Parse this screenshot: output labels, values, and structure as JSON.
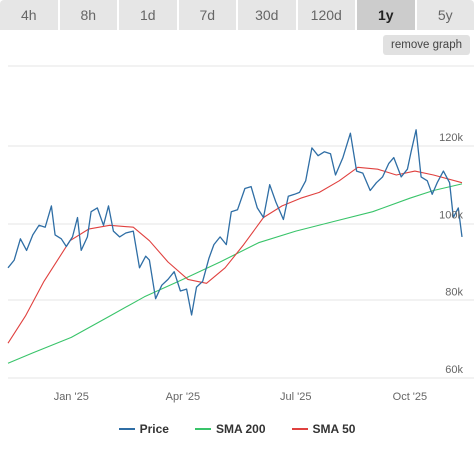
{
  "tabs": [
    {
      "label": "4h",
      "active": false
    },
    {
      "label": "8h",
      "active": false
    },
    {
      "label": "1d",
      "active": false
    },
    {
      "label": "7d",
      "active": false
    },
    {
      "label": "30d",
      "active": false
    },
    {
      "label": "120d",
      "active": false
    },
    {
      "label": "1y",
      "active": true
    },
    {
      "label": "5y",
      "active": false
    }
  ],
  "remove_graph_label": "remove graph",
  "colors": {
    "price": "#2f6ea5",
    "sma200": "#39c46a",
    "sma50": "#e0413f",
    "grid": "#e6e6e6"
  },
  "chart_data": {
    "type": "line",
    "x_ticks": [
      "Jan '25",
      "Apr '25",
      "Jul '25",
      "Oct '25"
    ],
    "y_ticks": [
      "60k",
      "80k",
      "100k",
      "120k"
    ],
    "ylim": [
      60000,
      120000
    ],
    "xlim": [
      "2024-11-11",
      "2025-11-12"
    ],
    "grid": true,
    "legend_position": "bottom",
    "series": [
      {
        "name": "Price",
        "points": [
          [
            "2024-11-11",
            88500
          ],
          [
            "2024-11-16",
            90500
          ],
          [
            "2024-11-21",
            96000
          ],
          [
            "2024-11-26",
            93000
          ],
          [
            "2024-12-01",
            97000
          ],
          [
            "2024-12-06",
            99500
          ],
          [
            "2024-12-11",
            99000
          ],
          [
            "2024-12-16",
            104500
          ],
          [
            "2024-12-19",
            97000
          ],
          [
            "2024-12-24",
            96000
          ],
          [
            "2024-12-28",
            94000
          ],
          [
            "2025-01-02",
            96500
          ],
          [
            "2025-01-06",
            101500
          ],
          [
            "2025-01-09",
            93000
          ],
          [
            "2025-01-14",
            96500
          ],
          [
            "2025-01-17",
            103000
          ],
          [
            "2025-01-22",
            104000
          ],
          [
            "2025-01-27",
            99500
          ],
          [
            "2025-01-31",
            104500
          ],
          [
            "2025-02-04",
            98000
          ],
          [
            "2025-02-09",
            96500
          ],
          [
            "2025-02-14",
            97500
          ],
          [
            "2025-02-20",
            98000
          ],
          [
            "2025-02-25",
            88500
          ],
          [
            "2025-03-02",
            91500
          ],
          [
            "2025-03-05",
            90500
          ],
          [
            "2025-03-10",
            80500
          ],
          [
            "2025-03-15",
            84000
          ],
          [
            "2025-03-20",
            85500
          ],
          [
            "2025-03-25",
            87500
          ],
          [
            "2025-03-30",
            82500
          ],
          [
            "2025-04-04",
            83000
          ],
          [
            "2025-04-08",
            76300
          ],
          [
            "2025-04-12",
            83500
          ],
          [
            "2025-04-17",
            85000
          ],
          [
            "2025-04-22",
            91000
          ],
          [
            "2025-04-26",
            94500
          ],
          [
            "2025-05-01",
            96500
          ],
          [
            "2025-05-06",
            94500
          ],
          [
            "2025-05-10",
            103000
          ],
          [
            "2025-05-15",
            103500
          ],
          [
            "2025-05-21",
            109000
          ],
          [
            "2025-05-26",
            109500
          ],
          [
            "2025-05-31",
            104000
          ],
          [
            "2025-06-05",
            101500
          ],
          [
            "2025-06-10",
            110000
          ],
          [
            "2025-06-15",
            105500
          ],
          [
            "2025-06-21",
            101000
          ],
          [
            "2025-06-25",
            107000
          ],
          [
            "2025-06-30",
            107500
          ],
          [
            "2025-07-04",
            108000
          ],
          [
            "2025-07-09",
            111000
          ],
          [
            "2025-07-14",
            119500
          ],
          [
            "2025-07-19",
            117500
          ],
          [
            "2025-07-24",
            118500
          ],
          [
            "2025-07-29",
            118000
          ],
          [
            "2025-08-02",
            112500
          ],
          [
            "2025-08-08",
            117000
          ],
          [
            "2025-08-14",
            123300
          ],
          [
            "2025-08-19",
            113500
          ],
          [
            "2025-08-24",
            113000
          ],
          [
            "2025-08-30",
            108500
          ],
          [
            "2025-09-04",
            110500
          ],
          [
            "2025-09-09",
            112000
          ],
          [
            "2025-09-14",
            115500
          ],
          [
            "2025-09-18",
            117000
          ],
          [
            "2025-09-24",
            112000
          ],
          [
            "2025-09-29",
            114000
          ],
          [
            "2025-10-02",
            118500
          ],
          [
            "2025-10-06",
            124200
          ],
          [
            "2025-10-10",
            112000
          ],
          [
            "2025-10-15",
            111000
          ],
          [
            "2025-10-19",
            107500
          ],
          [
            "2025-10-23",
            110500
          ],
          [
            "2025-10-28",
            113500
          ],
          [
            "2025-11-02",
            110500
          ],
          [
            "2025-11-05",
            101500
          ],
          [
            "2025-11-09",
            104000
          ],
          [
            "2025-11-12",
            96500
          ]
        ]
      },
      {
        "name": "SMA 200",
        "points": [
          [
            "2024-11-11",
            63800
          ],
          [
            "2024-12-01",
            66500
          ],
          [
            "2025-01-01",
            70500
          ],
          [
            "2025-02-01",
            76000
          ],
          [
            "2025-03-01",
            81000
          ],
          [
            "2025-04-01",
            85500
          ],
          [
            "2025-05-01",
            90000
          ],
          [
            "2025-06-01",
            95000
          ],
          [
            "2025-07-01",
            98000
          ],
          [
            "2025-08-01",
            100500
          ],
          [
            "2025-09-01",
            103000
          ],
          [
            "2025-10-01",
            106500
          ],
          [
            "2025-10-20",
            108500
          ],
          [
            "2025-11-12",
            110200
          ]
        ]
      },
      {
        "name": "SMA 50",
        "points": [
          [
            "2024-11-11",
            69000
          ],
          [
            "2024-11-25",
            76000
          ],
          [
            "2024-12-10",
            85000
          ],
          [
            "2024-12-31",
            95500
          ],
          [
            "2025-01-15",
            98500
          ],
          [
            "2025-02-01",
            99500
          ],
          [
            "2025-02-20",
            99000
          ],
          [
            "2025-03-05",
            95500
          ],
          [
            "2025-03-20",
            90000
          ],
          [
            "2025-04-05",
            85500
          ],
          [
            "2025-04-20",
            84500
          ],
          [
            "2025-05-05",
            88500
          ],
          [
            "2025-05-20",
            94500
          ],
          [
            "2025-06-05",
            101500
          ],
          [
            "2025-06-20",
            104500
          ],
          [
            "2025-07-05",
            106500
          ],
          [
            "2025-07-20",
            108000
          ],
          [
            "2025-08-05",
            111000
          ],
          [
            "2025-08-20",
            114500
          ],
          [
            "2025-09-05",
            114000
          ],
          [
            "2025-09-20",
            112500
          ],
          [
            "2025-10-05",
            113500
          ],
          [
            "2025-10-20",
            112500
          ],
          [
            "2025-11-12",
            110500
          ]
        ]
      }
    ]
  }
}
